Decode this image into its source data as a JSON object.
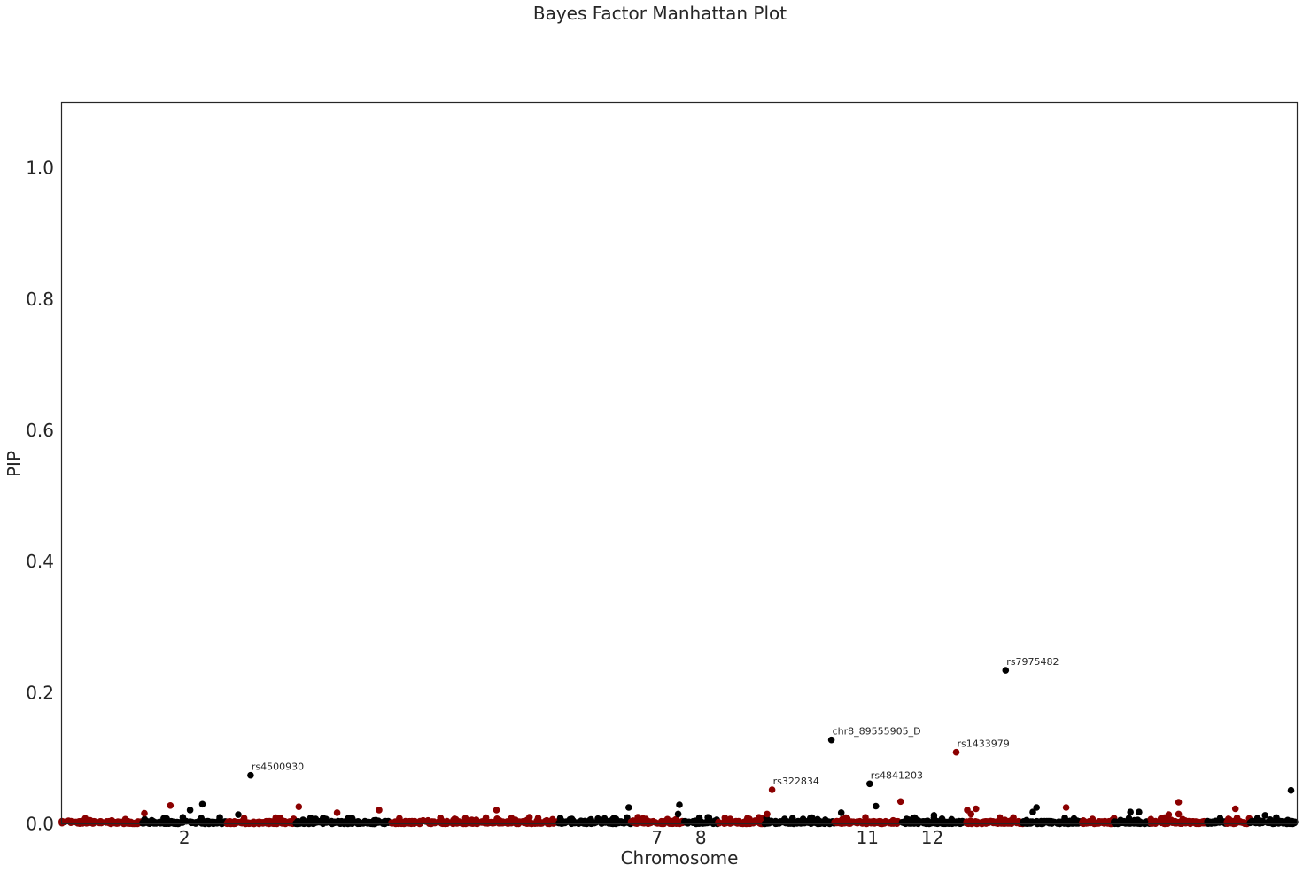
{
  "chart_data": {
    "type": "scatter",
    "title": "Bayes Factor Manhattan Plot",
    "xlabel": "Chromosome",
    "ylabel": "PIP",
    "ylim": [
      0,
      1.1
    ],
    "yticks": [
      0.0,
      0.2,
      0.4,
      0.6,
      0.8,
      1.0
    ],
    "ytick_labels": [
      "0.0",
      "0.2",
      "0.4",
      "0.6",
      "0.8",
      "1.0"
    ],
    "xticks": [
      {
        "label": "2",
        "chrom": 2
      },
      {
        "label": "7",
        "chrom": 7
      },
      {
        "label": "8",
        "chrom": 8
      },
      {
        "label": "11",
        "chrom": 11
      },
      {
        "label": "12",
        "chrom": 12
      }
    ],
    "grid": false,
    "colors": {
      "odd": "#8b0000",
      "even": "#000000"
    },
    "chromosomes": [
      {
        "chrom": 1,
        "start": 0,
        "end": 9
      },
      {
        "chrom": 2,
        "start": 9,
        "end": 18.5
      },
      {
        "chrom": 3,
        "start": 18.5,
        "end": 26.2
      },
      {
        "chrom": 4,
        "start": 26.2,
        "end": 36.9
      },
      {
        "chrom": 5,
        "start": 36.9,
        "end": 55.6
      },
      {
        "chrom": 6,
        "start": 55.6,
        "end": 63.7
      },
      {
        "chrom": 7,
        "start": 63.7,
        "end": 69.6
      },
      {
        "chrom": 8,
        "start": 69.6,
        "end": 73.5
      },
      {
        "chrom": 9,
        "start": 73.5,
        "end": 78.7
      },
      {
        "chrom": 10,
        "start": 78.7,
        "end": 86.5
      },
      {
        "chrom": 11,
        "start": 86.5,
        "end": 93.9
      },
      {
        "chrom": 12,
        "start": 93.9,
        "end": 101
      },
      {
        "chrom": 13,
        "start": 101,
        "end": 107.6
      },
      {
        "chrom": 14,
        "start": 107.6,
        "end": 114.2
      },
      {
        "chrom": 15,
        "start": 114.2,
        "end": 117.8
      },
      {
        "chrom": 16,
        "start": 117.8,
        "end": 121.9
      },
      {
        "chrom": 17,
        "start": 121.9,
        "end": 128.2
      },
      {
        "chrom": 18,
        "start": 128.2,
        "end": 130.4
      },
      {
        "chrom": 19,
        "start": 130.4,
        "end": 133
      },
      {
        "chrom": 20,
        "start": 133,
        "end": 138.3
      }
    ],
    "annotated_points": [
      {
        "label": "rs4500930",
        "chrom": 2,
        "x": 15.3,
        "y": 0.074
      },
      {
        "label": "rs322834",
        "chrom": 7,
        "x": 57.5,
        "y": 0.052
      },
      {
        "label": "chr8_89555905_D",
        "chrom": 8,
        "x": 62.3,
        "y": 0.128
      },
      {
        "label": "rs4841203",
        "chrom": 8,
        "x": 65.4,
        "y": 0.061
      },
      {
        "label": "rs1433979",
        "chrom": 11,
        "x": 72.4,
        "y": 0.109
      },
      {
        "label": "rs7975482",
        "chrom": 12,
        "x": 76.4,
        "y": 0.234
      }
    ],
    "other_points": [
      {
        "chrom": 1,
        "x": 8.8,
        "y": 0.028
      },
      {
        "chrom": 1,
        "x": 6.7,
        "y": 0.016
      },
      {
        "chrom": 2,
        "x": 11.4,
        "y": 0.03
      },
      {
        "chrom": 2,
        "x": 10.4,
        "y": 0.021
      },
      {
        "chrom": 2,
        "x": 14.3,
        "y": 0.014
      },
      {
        "chrom": 3,
        "x": 19.2,
        "y": 0.026
      },
      {
        "chrom": 3,
        "x": 22.3,
        "y": 0.017
      },
      {
        "chrom": 3,
        "x": 25.7,
        "y": 0.021
      },
      {
        "chrom": 5,
        "x": 35.2,
        "y": 0.021
      },
      {
        "chrom": 6,
        "x": 45.9,
        "y": 0.025
      },
      {
        "chrom": 6,
        "x": 50.0,
        "y": 0.029
      },
      {
        "chrom": 6,
        "x": 49.9,
        "y": 0.015
      },
      {
        "chrom": 7,
        "x": 57.1,
        "y": 0.015
      },
      {
        "chrom": 8,
        "x": 63.1,
        "y": 0.017
      },
      {
        "chrom": 8,
        "x": 65.9,
        "y": 0.027
      },
      {
        "chrom": 9,
        "x": 67.9,
        "y": 0.034
      },
      {
        "chrom": 10,
        "x": 70.6,
        "y": 0.013
      },
      {
        "chrom": 11,
        "x": 73.3,
        "y": 0.021
      },
      {
        "chrom": 11,
        "x": 74.0,
        "y": 0.023
      },
      {
        "chrom": 11,
        "x": 73.6,
        "y": 0.015
      },
      {
        "chrom": 12,
        "x": 78.9,
        "y": 0.025
      },
      {
        "chrom": 12,
        "x": 78.6,
        "y": 0.018
      },
      {
        "chrom": 13,
        "x": 81.3,
        "y": 0.025
      },
      {
        "chrom": 14,
        "x": 86.5,
        "y": 0.018
      },
      {
        "chrom": 14,
        "x": 87.2,
        "y": 0.018
      },
      {
        "chrom": 15,
        "x": 90.4,
        "y": 0.033
      },
      {
        "chrom": 15,
        "x": 90.4,
        "y": 0.015
      },
      {
        "chrom": 15,
        "x": 89.6,
        "y": 0.014
      },
      {
        "chrom": 17,
        "x": 95.0,
        "y": 0.023
      },
      {
        "chrom": 18,
        "x": 97.4,
        "y": 0.013
      },
      {
        "chrom": 20,
        "x": 99.5,
        "y": 0.051
      }
    ]
  }
}
